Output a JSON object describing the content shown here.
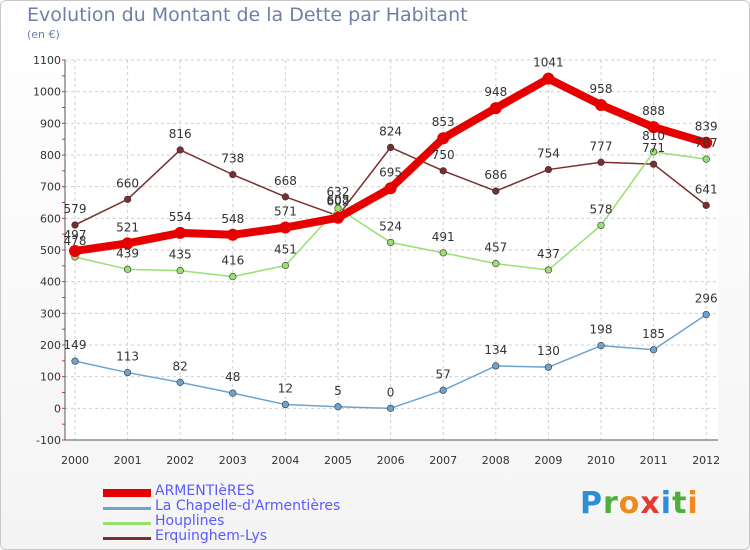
{
  "title": "Evolution du Montant de la Dette par Habitant",
  "unit_label": "(en €)",
  "logo": {
    "text": "Proxiti",
    "letter_colors": [
      "#2b8fd6",
      "#4fae3b",
      "#f08a1d",
      "#e23b2f",
      "#2b8fd6",
      "#4fae3b",
      "#f08a1d"
    ]
  },
  "chart_data": {
    "type": "line",
    "title": "Evolution du Montant de la Dette par Habitant",
    "ylabel": "(en €)",
    "xlabel": "",
    "x": [
      "2000",
      "2001",
      "2002",
      "2003",
      "2004",
      "2005",
      "2006",
      "2007",
      "2008",
      "2009",
      "2010",
      "2011",
      "2012"
    ],
    "ylim": [
      -100,
      1100
    ],
    "yticks": [
      -100,
      0,
      100,
      200,
      300,
      400,
      500,
      600,
      700,
      800,
      900,
      1000,
      1100
    ],
    "grid": true,
    "legend": "bottom-left",
    "series": [
      {
        "name": "ARMENTIèRES",
        "color": "#e60000",
        "values": [
          497,
          521,
          554,
          548,
          571,
          602,
          695,
          853,
          948,
          1041,
          958,
          888,
          839
        ]
      },
      {
        "name": "La Chapelle-d'Armentières",
        "color": "#6fa3cf",
        "values": [
          149,
          113,
          82,
          48,
          12,
          5,
          0,
          57,
          134,
          130,
          198,
          185,
          296
        ]
      },
      {
        "name": "Houplines",
        "color": "#98e070",
        "values": [
          478,
          439,
          435,
          416,
          451,
          632,
          524,
          491,
          457,
          437,
          578,
          810,
          787
        ]
      },
      {
        "name": "Erquinghem-Lys",
        "color": "#7a2e2e",
        "values": [
          579,
          660,
          816,
          738,
          668,
          608,
          824,
          750,
          686,
          754,
          777,
          771,
          641
        ]
      }
    ]
  }
}
